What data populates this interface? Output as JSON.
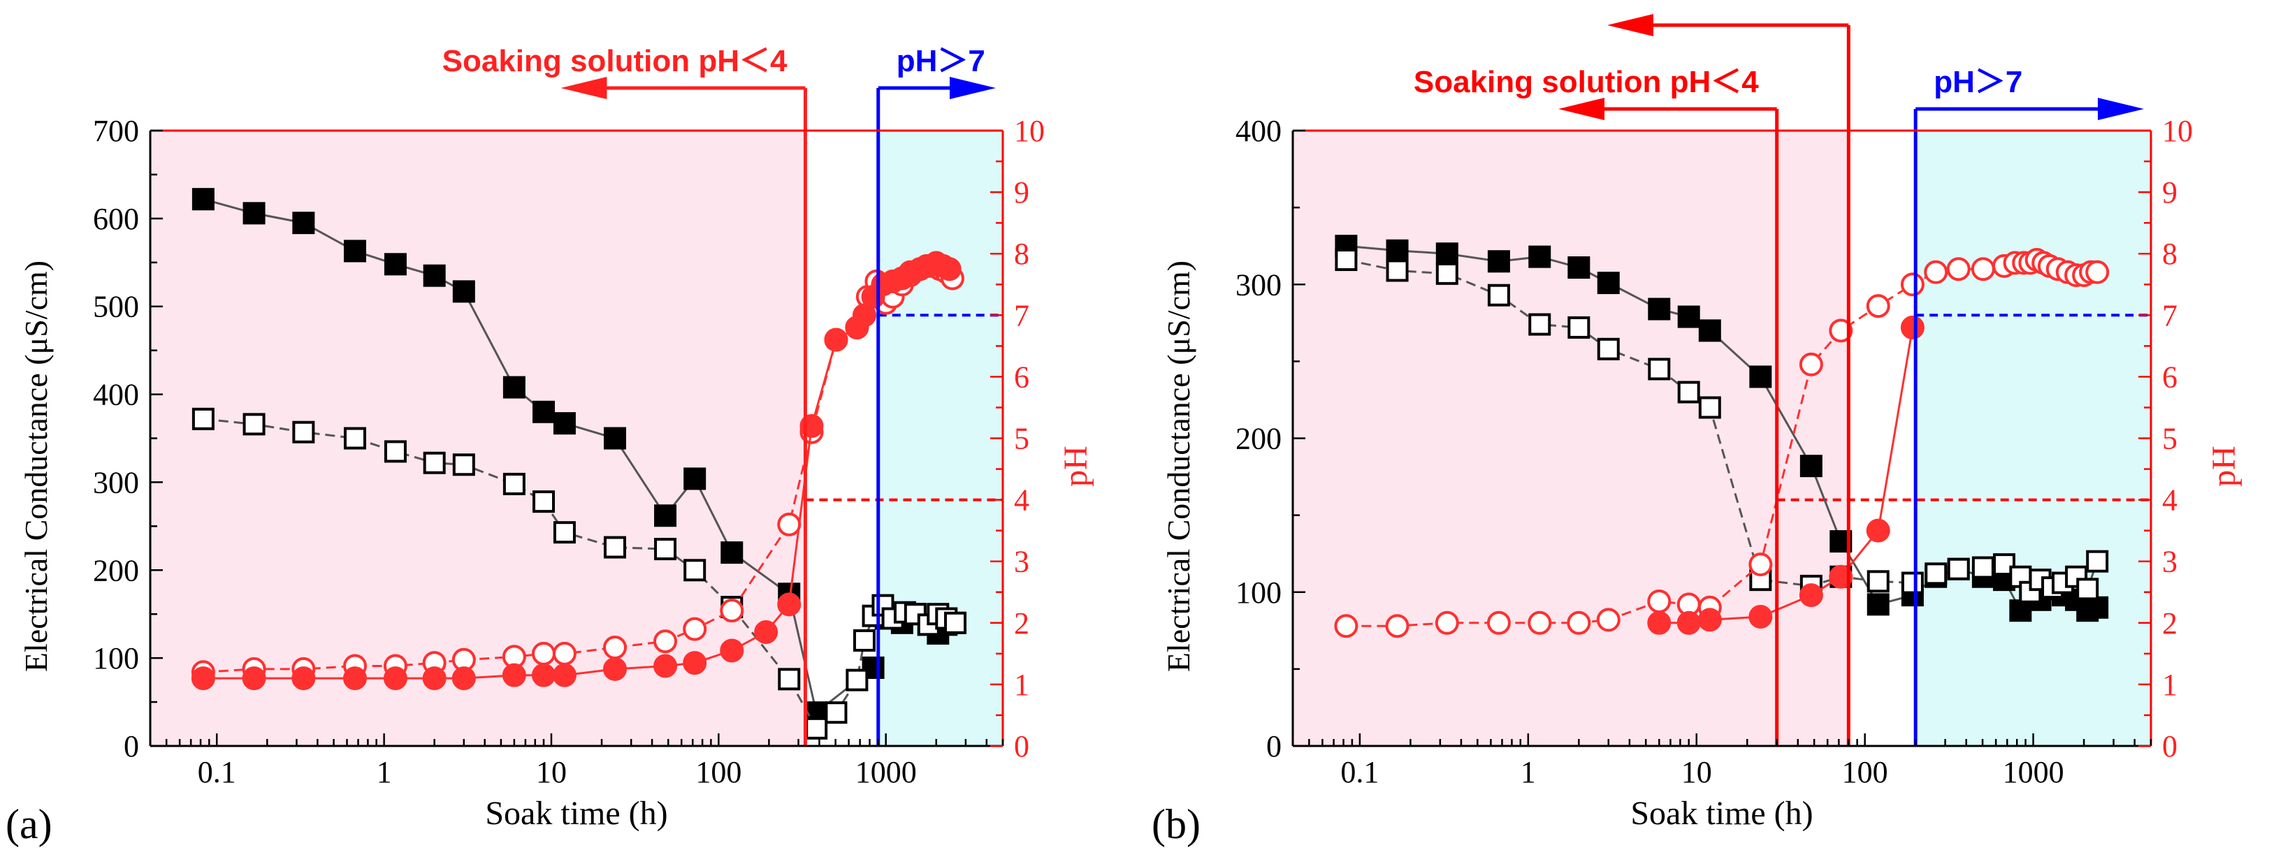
{
  "chart_data": [
    {
      "type": "scatter",
      "panel_label": "(a)",
      "xlabel": "Soak time (h)",
      "ylabel": "Electrical Conductance (μS/cm)",
      "y2label": "pH",
      "xscale": "log",
      "xlim": [
        0.04,
        5000
      ],
      "ylim": [
        0,
        700
      ],
      "y2lim": [
        0,
        10
      ],
      "x_ticks": [
        0.1,
        1,
        10,
        100,
        1000
      ],
      "x_tick_labels": [
        "0.1",
        "1",
        "10",
        "100",
        "1000"
      ],
      "y_ticks": [
        0,
        100,
        200,
        300,
        400,
        500,
        600,
        700
      ],
      "y_tick_labels": [
        "0",
        "100",
        "200",
        "300",
        "400",
        "500",
        "600",
        "700"
      ],
      "y2_ticks": [
        0,
        1,
        2,
        3,
        4,
        5,
        6,
        7,
        8,
        9,
        10
      ],
      "y2_tick_labels": [
        "0",
        "1",
        "2",
        "3",
        "4",
        "5",
        "6",
        "7",
        "8",
        "9",
        "10"
      ],
      "regions": [
        {
          "name": "acidic",
          "x_range": [
            0.04,
            330
          ],
          "color": "#fde6ee"
        },
        {
          "name": "alkaline",
          "x_range": [
            900,
            5000
          ],
          "color": "#dcfafa"
        }
      ],
      "reference_lines": [
        {
          "name": "pH4",
          "axis": "y2",
          "value": 4,
          "x_range": [
            330,
            5000
          ],
          "color": "#ff0000"
        },
        {
          "name": "pH7",
          "axis": "y2",
          "value": 7,
          "x_range": [
            900,
            5000
          ],
          "color": "#0000ff"
        }
      ],
      "annotations": [
        {
          "name": "acid-annotation",
          "text": "Soaking solution pH＜4",
          "x_at": 330,
          "direction": "left",
          "color": "#ff2020",
          "level": 1
        },
        {
          "name": "alkaline-annotation",
          "text": "pH＞7",
          "x_at": 900,
          "direction": "right",
          "color": "#0000ff",
          "level": 1
        }
      ],
      "series": [
        {
          "name": "EC filled squares",
          "axis": "y",
          "marker": "square",
          "filled": true,
          "color": "#000000",
          "line": "solid",
          "x": [
            0.083,
            0.167,
            0.33,
            0.67,
            1.17,
            2,
            3,
            6,
            9,
            12,
            24,
            48,
            72,
            120,
            264,
            384,
            840
          ],
          "y": [
            622,
            606,
            595,
            563,
            548,
            535,
            517,
            408,
            380,
            367,
            350,
            262,
            304,
            220,
            173,
            38,
            89
          ]
        },
        {
          "name": "EC filled squares alkaline",
          "axis": "y",
          "marker": "square",
          "filled": true,
          "color": "#000000",
          "line": "solid",
          "x": [
            1000,
            1250,
            1500,
            1800,
            2050,
            2300,
            2600
          ],
          "y": [
            145,
            140,
            150,
            138,
            128,
            138,
            140
          ]
        },
        {
          "name": "EC open squares",
          "axis": "y",
          "marker": "square",
          "filled": false,
          "color": "#000000",
          "line": "dashed",
          "x": [
            0.083,
            0.167,
            0.33,
            0.67,
            1.17,
            2,
            3,
            6,
            9,
            12,
            24,
            48,
            72,
            120,
            264,
            384,
            504,
            672,
            744,
            840,
            960,
            1100,
            1300,
            1500,
            1800,
            2050,
            2300,
            2600
          ],
          "y": [
            372,
            366,
            357,
            350,
            335,
            322,
            320,
            298,
            278,
            243,
            226,
            224,
            200,
            158,
            76,
            20,
            38,
            75,
            120,
            148,
            160,
            145,
            152,
            150,
            138,
            150,
            145,
            140
          ]
        },
        {
          "name": "pH open circles",
          "axis": "y2",
          "marker": "circle",
          "filled": false,
          "color": "#ff3030",
          "line": "dashed",
          "x": [
            0.083,
            0.167,
            0.33,
            0.67,
            1.17,
            2,
            3,
            6,
            9,
            12,
            24,
            48,
            72,
            120,
            264,
            360,
            504,
            672,
            780,
            880,
            1000,
            1100,
            1250,
            1400,
            1600,
            1750,
            1900,
            2100,
            2300,
            2500
          ],
          "y": [
            1.2,
            1.25,
            1.25,
            1.3,
            1.3,
            1.35,
            1.4,
            1.45,
            1.5,
            1.5,
            1.6,
            1.7,
            1.9,
            2.2,
            3.6,
            5.1,
            6.6,
            6.8,
            7.3,
            7.55,
            7.2,
            7.3,
            7.5,
            7.65,
            7.75,
            7.8,
            7.8,
            7.75,
            7.7,
            7.6
          ]
        },
        {
          "name": "pH filled circles",
          "axis": "y2",
          "marker": "circle",
          "filled": true,
          "color": "#ff3030",
          "line": "solid",
          "x": [
            0.083,
            0.167,
            0.33,
            0.67,
            1.17,
            2,
            3,
            6,
            9,
            12,
            24,
            48,
            72,
            120,
            192,
            264,
            360,
            504,
            672,
            744,
            840,
            960,
            1100,
            1250,
            1400,
            1600,
            1800,
            2000,
            2200,
            2400
          ],
          "y": [
            1.1,
            1.1,
            1.1,
            1.1,
            1.1,
            1.1,
            1.1,
            1.15,
            1.15,
            1.15,
            1.25,
            1.3,
            1.35,
            1.55,
            1.85,
            2.3,
            5.2,
            6.6,
            6.8,
            7.0,
            7.3,
            7.5,
            7.55,
            7.6,
            7.7,
            7.75,
            7.8,
            7.85,
            7.8,
            7.75
          ]
        }
      ]
    },
    {
      "type": "scatter",
      "panel_label": "(b)",
      "xlabel": "Soak time (h)",
      "ylabel": "Electrical Conductance (μS/cm)",
      "y2label": "pH",
      "xscale": "log",
      "xlim": [
        0.04,
        5000
      ],
      "ylim": [
        0,
        400
      ],
      "y2lim": [
        0,
        10
      ],
      "x_ticks": [
        0.1,
        1,
        10,
        100,
        1000
      ],
      "x_tick_labels": [
        "0.1",
        "1",
        "10",
        "100",
        "1000"
      ],
      "y_ticks": [
        0,
        100,
        200,
        300,
        400
      ],
      "y_tick_labels": [
        "0",
        "100",
        "200",
        "300",
        "400"
      ],
      "y2_ticks": [
        0,
        1,
        2,
        3,
        4,
        5,
        6,
        7,
        8,
        9,
        10
      ],
      "y2_tick_labels": [
        "0",
        "1",
        "2",
        "3",
        "4",
        "5",
        "6",
        "7",
        "8",
        "9",
        "10"
      ],
      "regions": [
        {
          "name": "acidic",
          "x_range": [
            0.04,
            80
          ],
          "color": "#fde6ee"
        },
        {
          "name": "alkaline",
          "x_range": [
            200,
            5000
          ],
          "color": "#dcfafa"
        }
      ],
      "reference_lines": [
        {
          "name": "pH4",
          "axis": "y2",
          "value": 4,
          "x_range": [
            30,
            5000
          ],
          "color": "#ff0000"
        },
        {
          "name": "pH7",
          "axis": "y2",
          "value": 7,
          "x_range": [
            200,
            5000
          ],
          "color": "#0000ff"
        }
      ],
      "annotations": [
        {
          "name": "acid-annotation-1",
          "text": "Soaking solution pH＜4",
          "x_at": 30,
          "direction": "left",
          "color": "#ff0000",
          "level": 1
        },
        {
          "name": "acid-annotation-2",
          "text": "",
          "x_at": 80,
          "direction": "left",
          "color": "#ff0000",
          "level": 2
        },
        {
          "name": "alkaline-annotation",
          "text": "pH＞7",
          "x_at": 200,
          "direction": "right",
          "color": "#0000ff",
          "level": 1
        }
      ],
      "series": [
        {
          "name": "EC filled squares",
          "axis": "y",
          "marker": "square",
          "filled": true,
          "color": "#000000",
          "line": "solid",
          "x": [
            0.083,
            0.167,
            0.33,
            0.67,
            1.17,
            2,
            3,
            6,
            9,
            12,
            24,
            48,
            72,
            120,
            192,
            264,
            360,
            504,
            672,
            840,
            960,
            1100,
            1300,
            1500,
            1800,
            2100,
            2400
          ],
          "y": [
            325,
            322,
            320,
            315,
            318,
            311,
            301,
            284,
            279,
            270,
            240,
            182,
            133,
            92,
            98,
            110,
            115,
            110,
            108,
            88,
            100,
            95,
            102,
            98,
            95,
            88,
            90
          ]
        },
        {
          "name": "EC open squares",
          "axis": "y",
          "marker": "square",
          "filled": false,
          "color": "#000000",
          "line": "dashed",
          "x": [
            0.083,
            0.167,
            0.33,
            0.67,
            1.17,
            2,
            3,
            6,
            9,
            12,
            24,
            48,
            72,
            120,
            192,
            264,
            360,
            504,
            672,
            840,
            960,
            1100,
            1300,
            1500,
            1800,
            2100,
            2400
          ],
          "y": [
            316,
            309,
            307,
            293,
            274,
            272,
            258,
            245,
            230,
            220,
            108,
            104,
            110,
            107,
            106,
            112,
            115,
            116,
            118,
            110,
            100,
            108,
            103,
            106,
            110,
            102,
            120
          ]
        },
        {
          "name": "pH open circles",
          "axis": "y2",
          "marker": "circle",
          "filled": false,
          "color": "#ff3030",
          "line": "dashed",
          "x": [
            0.083,
            0.167,
            0.33,
            0.67,
            1.17,
            2,
            3,
            6,
            9,
            12,
            24,
            48,
            72,
            120,
            192,
            264,
            360,
            504,
            672,
            780,
            880,
            960,
            1050,
            1150,
            1250,
            1400,
            1600,
            1800,
            2000,
            2200,
            2400
          ],
          "y": [
            1.95,
            1.95,
            2.0,
            2.0,
            2.0,
            2.0,
            2.05,
            2.35,
            2.3,
            2.25,
            2.95,
            6.2,
            6.75,
            7.15,
            7.5,
            7.7,
            7.75,
            7.75,
            7.8,
            7.85,
            7.85,
            7.85,
            7.9,
            7.85,
            7.8,
            7.75,
            7.7,
            7.65,
            7.65,
            7.7,
            7.7
          ]
        },
        {
          "name": "pH filled circles",
          "axis": "y2",
          "marker": "circle",
          "filled": true,
          "color": "#ff3030",
          "line": "solid",
          "x": [
            6,
            9,
            12,
            24,
            48,
            72,
            120,
            192
          ],
          "y": [
            2.0,
            2.0,
            2.05,
            2.1,
            2.45,
            2.75,
            3.5,
            6.8
          ]
        }
      ]
    }
  ]
}
